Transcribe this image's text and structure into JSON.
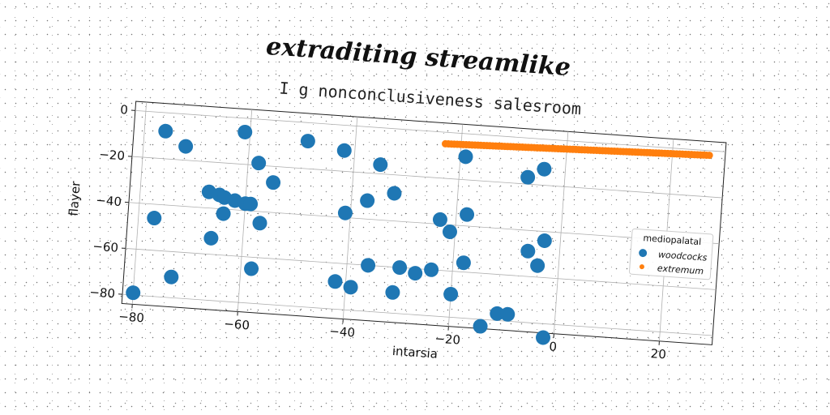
{
  "chart_data": {
    "type": "scatter",
    "title": "extraditing streamlike",
    "subtitle": "I g nonconclusiveness salesroom",
    "xlabel": "intarsia",
    "ylabel": "flayer",
    "xlim": [
      -82,
      30
    ],
    "ylim": [
      -84,
      4
    ],
    "xticks": [
      "−80",
      "−60",
      "−40",
      "−20",
      "0",
      "20"
    ],
    "xtick_values": [
      -80,
      -60,
      -40,
      -20,
      0,
      20
    ],
    "yticks": [
      "0",
      "−20",
      "−40",
      "−60",
      "−80"
    ],
    "ytick_values": [
      0,
      -20,
      -40,
      -60,
      -80
    ],
    "grid": true,
    "legend": {
      "title": "mediopalatal",
      "position": "center-right"
    },
    "series": [
      {
        "name": "woodcocks",
        "color": "#1f77b4",
        "marker_size": "large",
        "points": [
          [
            -76,
            -8
          ],
          [
            -72,
            -14
          ],
          [
            -61,
            -6
          ],
          [
            -49,
            -8
          ],
          [
            -42,
            -11
          ],
          [
            -35,
            -16
          ],
          [
            -19,
            -10
          ],
          [
            -7,
            -17
          ],
          [
            -4,
            -13
          ],
          [
            -58,
            -19
          ],
          [
            -55,
            -27
          ],
          [
            -67,
            -33
          ],
          [
            -65,
            -34
          ],
          [
            -64,
            -35
          ],
          [
            -62,
            -36
          ],
          [
            -60,
            -37
          ],
          [
            -59,
            -37
          ],
          [
            -64,
            -42
          ],
          [
            -37,
            -32
          ],
          [
            -32,
            -28
          ],
          [
            -41,
            -38
          ],
          [
            -23,
            -38
          ],
          [
            -21,
            -43
          ],
          [
            -18,
            -35
          ],
          [
            -77,
            -46
          ],
          [
            -57,
            -45
          ],
          [
            -3,
            -44
          ],
          [
            -6,
            -49
          ],
          [
            -66,
            -53
          ],
          [
            -18,
            -56
          ],
          [
            -4,
            -55
          ],
          [
            -36,
            -60
          ],
          [
            -30,
            -60
          ],
          [
            -27,
            -62
          ],
          [
            -24,
            -60
          ],
          [
            -58,
            -65
          ],
          [
            -42,
            -68
          ],
          [
            -39,
            -70
          ],
          [
            -31,
            -71
          ],
          [
            -20,
            -70
          ],
          [
            -73,
            -71
          ],
          [
            -11,
            -77
          ],
          [
            -9,
            -77
          ],
          [
            -14,
            -83
          ],
          [
            -80,
            -79
          ],
          [
            -2,
            -86
          ]
        ]
      },
      {
        "name": "extremum",
        "color": "#ff7f0e",
        "marker_size": "small",
        "line_from": [
          -23,
          -5
        ],
        "line_to": [
          27,
          -2
        ],
        "count": 90
      }
    ]
  }
}
